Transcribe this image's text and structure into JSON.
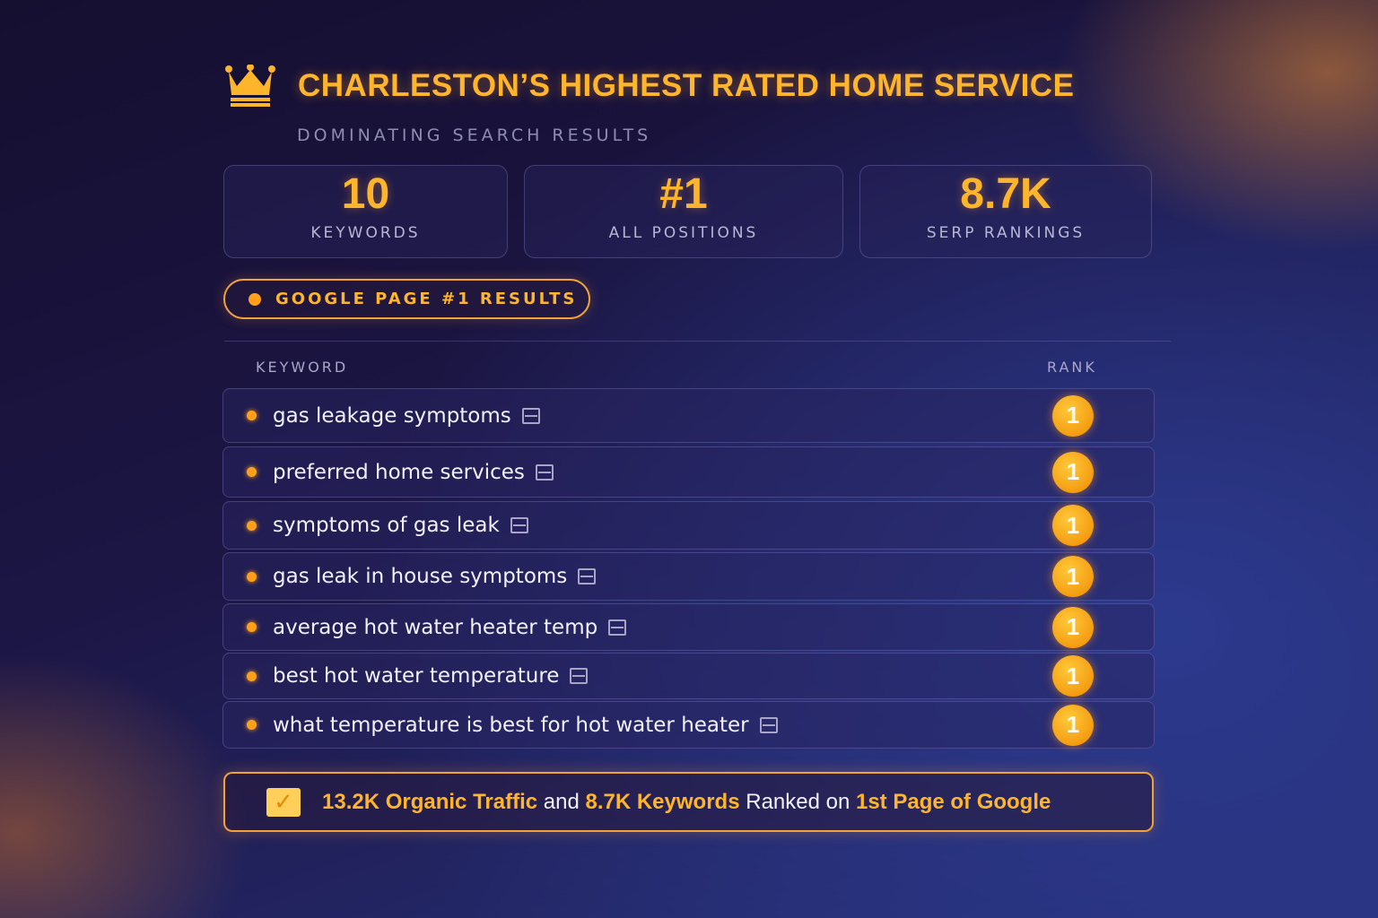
{
  "header": {
    "icon": "crown-icon",
    "title": "CHARLESTON’S HIGHEST RATED HOME SERVICE",
    "subtitle": "DOMINATING SEARCH RESULTS"
  },
  "stats": [
    {
      "value": "10",
      "label": "KEYWORDS"
    },
    {
      "value": "#1",
      "label": "ALL POSITIONS"
    },
    {
      "value": "8.7K",
      "label": "SERP RANKINGS"
    }
  ],
  "badge": {
    "label": "GOOGLE PAGE #1 RESULTS"
  },
  "table": {
    "columns": [
      "KEYWORD",
      "RANK"
    ],
    "rows": [
      {
        "keyword": "gas leakage symptoms",
        "rank": "1"
      },
      {
        "keyword": "preferred home services",
        "rank": "1"
      },
      {
        "keyword": "symptoms of gas leak",
        "rank": "1"
      },
      {
        "keyword": "gas leak in house symptoms",
        "rank": "1"
      },
      {
        "keyword": "average hot water heater temp",
        "rank": "1"
      },
      {
        "keyword": "best hot water temperature",
        "rank": "1"
      },
      {
        "keyword": "what temperature is best for hot water heater",
        "rank": "1"
      }
    ]
  },
  "footer": {
    "icon": "checkbox-icon",
    "part1": "13.2K Organic Traffic",
    "part2": " and ",
    "part3": "8.7K Keywords",
    "part4": " Ranked on ",
    "part5": "1st Page of Google"
  },
  "colors": {
    "accent": "#ffb52b",
    "background": "#1c1645"
  }
}
